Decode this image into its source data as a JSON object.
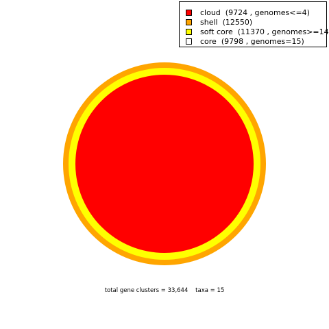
{
  "chart_data": {
    "type": "pie",
    "style": "concentric rings",
    "series": [
      {
        "name": "cloud  (9724 , genomes<=4)",
        "value": 9724,
        "color": "#ff0000"
      },
      {
        "name": "shell  (12550)",
        "value": 12550,
        "color": "#ffa500"
      },
      {
        "name": "soft core  (11370 , genomes>=14)",
        "value": 11370,
        "color": "#ffff00"
      },
      {
        "name": "core  (9798 , genomes=15)",
        "value": 9798,
        "color": "#ffffff"
      }
    ],
    "legend_position": "top-right",
    "footer": "total gene clusters = 33,644    taxa = 15"
  }
}
